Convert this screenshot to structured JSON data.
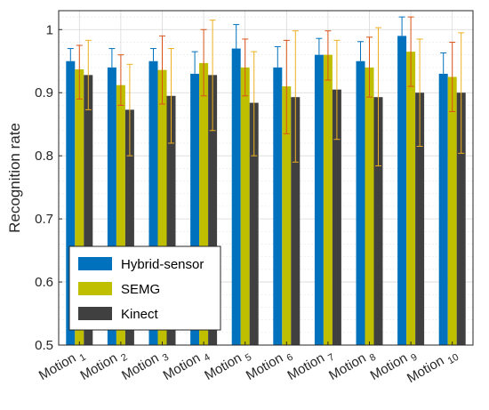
{
  "chart_data": {
    "type": "bar",
    "ylabel": "Recognition rate",
    "ylim": [
      0.5,
      1.03
    ],
    "yticks": [
      0.5,
      0.6,
      0.7,
      0.8,
      0.9,
      1
    ],
    "ytick_labels": [
      "0.5",
      "0.6",
      "0.7",
      "0.8",
      "0.9",
      "1"
    ],
    "categories": [
      {
        "base": "Motion",
        "sub": "1"
      },
      {
        "base": "Motion",
        "sub": "2"
      },
      {
        "base": "Motion",
        "sub": "3"
      },
      {
        "base": "Motion",
        "sub": "4"
      },
      {
        "base": "Motion",
        "sub": "5"
      },
      {
        "base": "Motion",
        "sub": "6"
      },
      {
        "base": "Motion",
        "sub": "7"
      },
      {
        "base": "Motion",
        "sub": "8"
      },
      {
        "base": "Motion",
        "sub": "9"
      },
      {
        "base": "Motion",
        "sub": "10"
      }
    ],
    "series": [
      {
        "name": "Hybrid-sensor",
        "color": "#0072bd",
        "error_color": "#0072bd",
        "values": [
          0.95,
          0.94,
          0.95,
          0.93,
          0.97,
          0.94,
          0.96,
          0.95,
          0.99,
          0.93
        ],
        "err_high": [
          0.97,
          0.97,
          0.97,
          0.965,
          1.008,
          0.973,
          0.986,
          0.981,
          1.02,
          0.963
        ]
      },
      {
        "name": "SEMG",
        "color": "#bfbf00",
        "error_color": "#d95319",
        "values": [
          0.937,
          0.912,
          0.936,
          0.947,
          0.94,
          0.91,
          0.96,
          0.94,
          0.965,
          0.925
        ],
        "err_low": [
          0.89,
          0.88,
          0.882,
          0.895,
          0.895,
          0.835,
          0.92,
          0.893,
          0.91,
          0.87
        ],
        "err_high": [
          0.975,
          0.96,
          0.99,
          1.0,
          0.985,
          0.983,
          0.998,
          0.988,
          1.02,
          0.98
        ]
      },
      {
        "name": "Kinect",
        "color": "#404040",
        "error_color": "#edb120",
        "values": [
          0.928,
          0.873,
          0.895,
          0.928,
          0.884,
          0.893,
          0.905,
          0.893,
          0.9,
          0.9
        ],
        "err_low": [
          0.873,
          0.8,
          0.82,
          0.84,
          0.8,
          0.79,
          0.826,
          0.784,
          0.815,
          0.804
        ],
        "err_high": [
          0.983,
          0.945,
          0.97,
          1.015,
          0.965,
          0.998,
          0.983,
          1.003,
          0.985,
          0.995
        ]
      }
    ],
    "grid": true,
    "minor_grid": true,
    "legend_position": "bottom-left"
  }
}
